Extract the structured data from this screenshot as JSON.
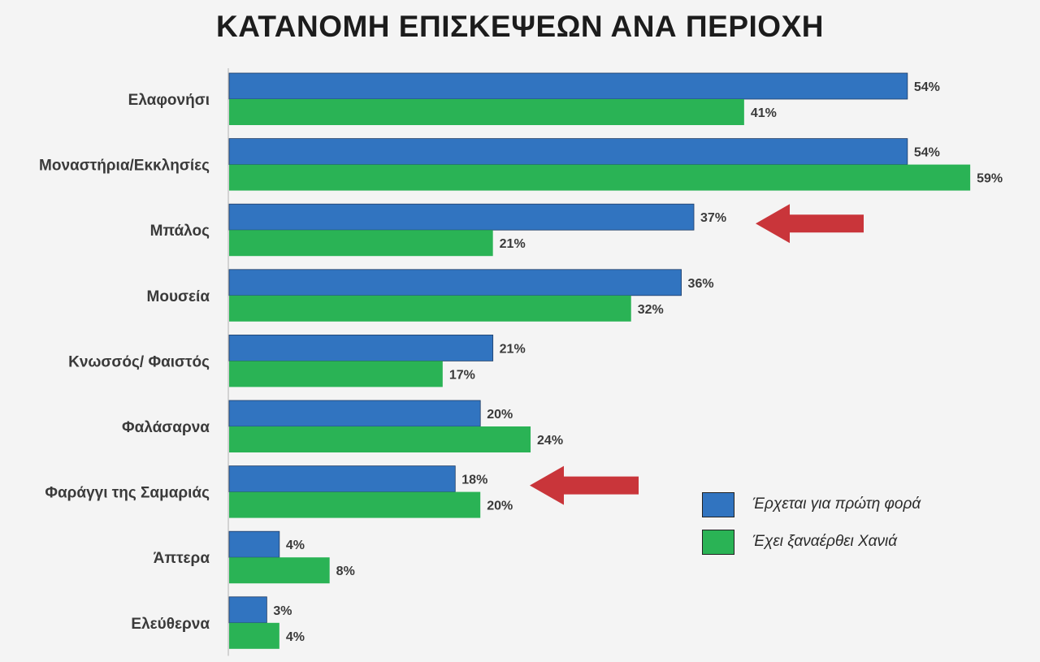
{
  "chart_data": {
    "type": "bar",
    "orientation": "horizontal",
    "title": "ΚΑΤΑΝΟΜΗ ΕΠΙΣΚΕΨΕΩΝ ΑΝΑ ΠΕΡΙΟΧΗ",
    "categories": [
      "Ελαφονήσι",
      "Μοναστήρια/Εκκλησίες",
      "Μπάλος",
      "Μουσεία",
      "Κνωσσός/ Φαιστός",
      "Φαλάσαρνα",
      "Φαράγγι της Σαμαριάς",
      "Άπτερα",
      "Ελεύθερνα"
    ],
    "series": [
      {
        "name": "Έρχεται για πρώτη φορά",
        "color": "#3174c0",
        "values": [
          54,
          54,
          37,
          36,
          21,
          20,
          18,
          4,
          3
        ],
        "labels": [
          "54%",
          "54%",
          "37%",
          "36%",
          "21%",
          "20%",
          "18%",
          "4%",
          "3%"
        ]
      },
      {
        "name": "Έχει ξαναέρθει Χανιά",
        "color": "#2ab355",
        "values": [
          41,
          59,
          21,
          32,
          17,
          24,
          20,
          8,
          4
        ],
        "labels": [
          "41%",
          "59%",
          "21%",
          "32%",
          "17%",
          "24%",
          "20%",
          "8%",
          "4%"
        ]
      }
    ],
    "xlim": [
      0,
      60
    ],
    "grid": false,
    "legend_position": "bottom-right",
    "annotations": [
      {
        "type": "arrow",
        "color": "#c9353a",
        "points_to": "Μπάλος"
      },
      {
        "type": "arrow",
        "color": "#c9353a",
        "points_to": "Φαράγγι της Σαμαριάς"
      }
    ]
  }
}
